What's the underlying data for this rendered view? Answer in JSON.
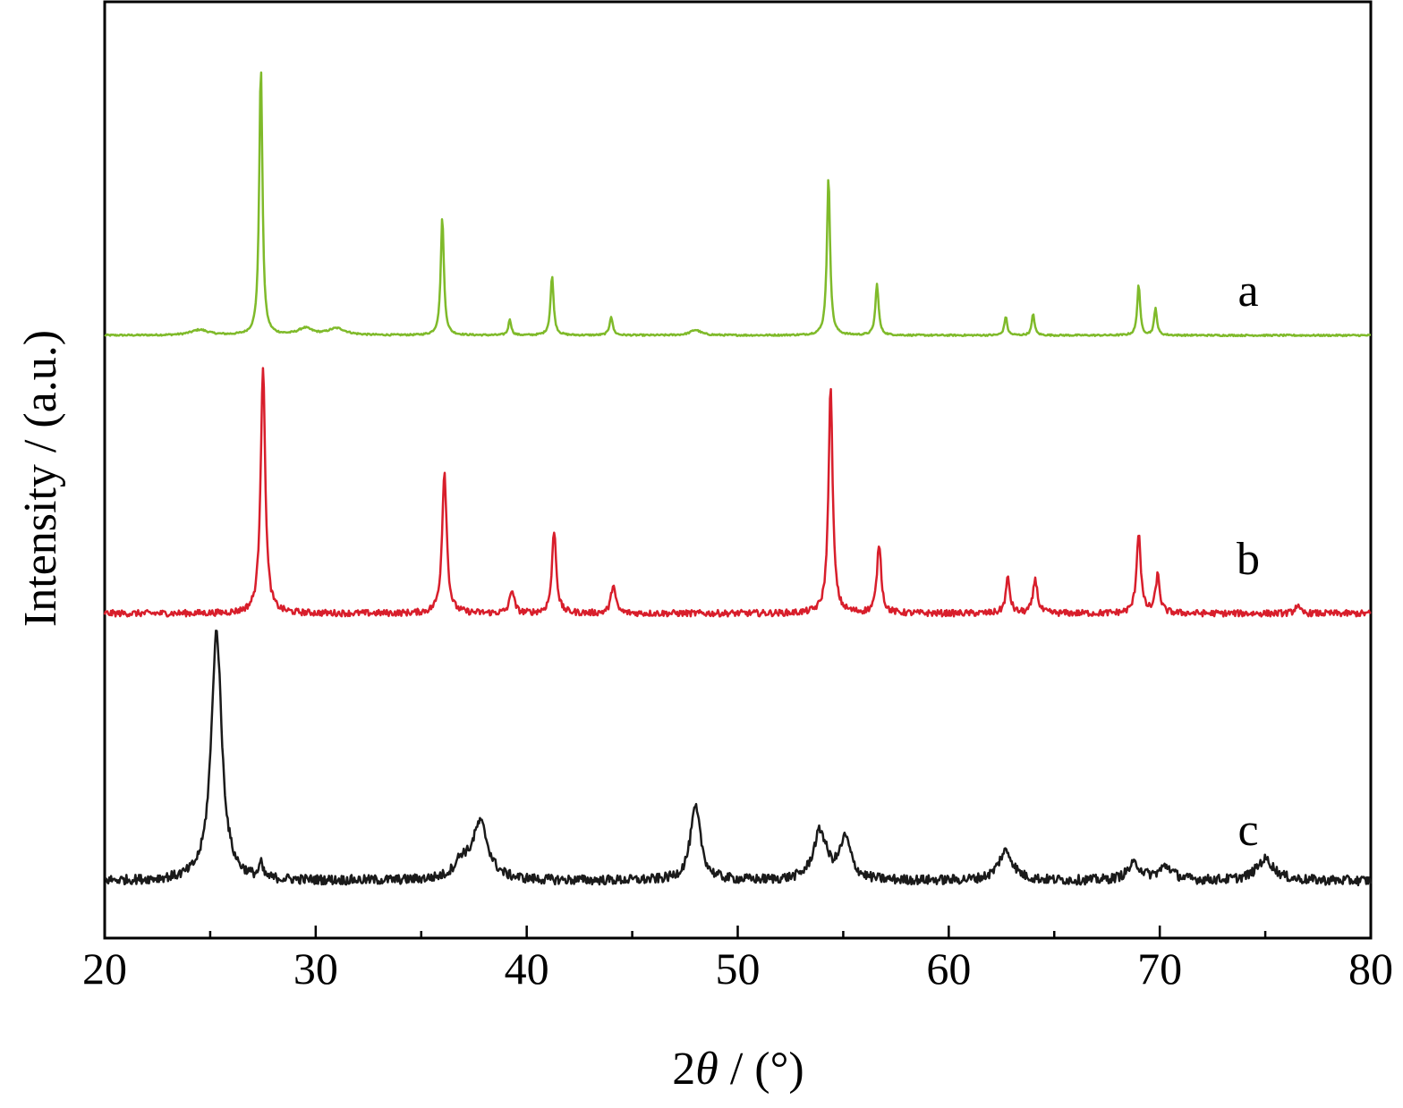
{
  "chart_data": {
    "type": "line",
    "xlabel_prefix": "2",
    "xlabel_symbol": "θ",
    "xlabel_suffix": " / (°)",
    "ylabel": "Intensity / (a.u.)",
    "xlim": [
      20,
      80
    ],
    "xticks": [
      20,
      30,
      40,
      50,
      60,
      70,
      80
    ],
    "grid": false,
    "legend": "none",
    "series": [
      {
        "name": "a",
        "color": "#7fba2a",
        "baseline": 0.0,
        "noise": 0.003,
        "peaks": [
          {
            "x": 27.4,
            "h": 1.0,
            "w": 0.09
          },
          {
            "x": 36.0,
            "h": 0.44,
            "w": 0.09
          },
          {
            "x": 39.2,
            "h": 0.06,
            "w": 0.08
          },
          {
            "x": 41.2,
            "h": 0.22,
            "w": 0.09
          },
          {
            "x": 44.0,
            "h": 0.07,
            "w": 0.09
          },
          {
            "x": 54.3,
            "h": 0.59,
            "w": 0.09
          },
          {
            "x": 56.6,
            "h": 0.19,
            "w": 0.09
          },
          {
            "x": 62.7,
            "h": 0.07,
            "w": 0.08
          },
          {
            "x": 64.0,
            "h": 0.08,
            "w": 0.08
          },
          {
            "x": 69.0,
            "h": 0.19,
            "w": 0.08
          },
          {
            "x": 69.8,
            "h": 0.1,
            "w": 0.08
          },
          {
            "x": 48.0,
            "h": 0.02,
            "w": 0.3
          },
          {
            "x": 29.5,
            "h": 0.025,
            "w": 0.4
          },
          {
            "x": 31.0,
            "h": 0.025,
            "w": 0.5
          },
          {
            "x": 24.5,
            "h": 0.02,
            "w": 0.5
          }
        ],
        "label": "a"
      },
      {
        "name": "b",
        "color": "#d81e2b",
        "baseline": 0.0,
        "noise": 0.012,
        "peaks": [
          {
            "x": 27.5,
            "h": 0.92,
            "w": 0.13
          },
          {
            "x": 36.1,
            "h": 0.53,
            "w": 0.13
          },
          {
            "x": 39.3,
            "h": 0.09,
            "w": 0.12
          },
          {
            "x": 41.3,
            "h": 0.31,
            "w": 0.12
          },
          {
            "x": 44.1,
            "h": 0.11,
            "w": 0.12
          },
          {
            "x": 54.4,
            "h": 0.84,
            "w": 0.12
          },
          {
            "x": 56.7,
            "h": 0.26,
            "w": 0.12
          },
          {
            "x": 62.8,
            "h": 0.13,
            "w": 0.12
          },
          {
            "x": 64.1,
            "h": 0.13,
            "w": 0.12
          },
          {
            "x": 69.0,
            "h": 0.3,
            "w": 0.12
          },
          {
            "x": 69.9,
            "h": 0.14,
            "w": 0.12
          },
          {
            "x": 76.5,
            "h": 0.03,
            "w": 0.12
          }
        ],
        "label": "b"
      },
      {
        "name": "c",
        "color": "#1a1a1a",
        "baseline": 0.0,
        "noise": 0.018,
        "peaks": [
          {
            "x": 25.3,
            "h": 0.93,
            "w": 0.3
          },
          {
            "x": 27.4,
            "h": 0.05,
            "w": 0.1
          },
          {
            "x": 37.8,
            "h": 0.21,
            "w": 0.45
          },
          {
            "x": 36.9,
            "h": 0.06,
            "w": 0.4
          },
          {
            "x": 48.0,
            "h": 0.27,
            "w": 0.3
          },
          {
            "x": 53.9,
            "h": 0.18,
            "w": 0.38
          },
          {
            "x": 55.1,
            "h": 0.15,
            "w": 0.32
          },
          {
            "x": 62.7,
            "h": 0.11,
            "w": 0.42
          },
          {
            "x": 68.8,
            "h": 0.06,
            "w": 0.4
          },
          {
            "x": 70.3,
            "h": 0.05,
            "w": 0.4
          },
          {
            "x": 75.0,
            "h": 0.08,
            "w": 0.5
          }
        ],
        "label": "c"
      }
    ]
  }
}
